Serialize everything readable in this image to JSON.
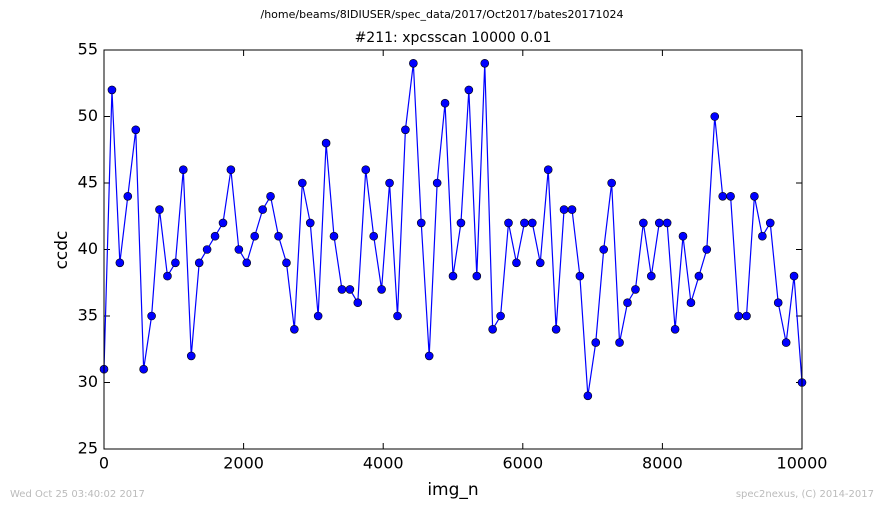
{
  "chart_data": {
    "type": "line",
    "title": "/home/beams/8IDIUSER/spec_data/2017/Oct2017/bates20171024",
    "subtitle": "#211: xpcsscan 10000 0.01",
    "x_label": "img_n",
    "y_label": "ccdc",
    "footer_left": "Wed Oct 25 03:40:02 2017",
    "footer_right": "spec2nexus, (C) 2014-2017",
    "x": [
      0,
      114,
      227,
      341,
      455,
      568,
      682,
      795,
      909,
      1023,
      1136,
      1250,
      1364,
      1477,
      1591,
      1705,
      1818,
      1932,
      2045,
      2159,
      2273,
      2386,
      2500,
      2614,
      2727,
      2841,
      2955,
      3068,
      3182,
      3295,
      3409,
      3523,
      3636,
      3750,
      3864,
      3977,
      4091,
      4205,
      4318,
      4432,
      4545,
      4659,
      4773,
      4886,
      5000,
      5114,
      5227,
      5341,
      5455,
      5568,
      5682,
      5795,
      5909,
      6023,
      6136,
      6250,
      6364,
      6477,
      6591,
      6705,
      6818,
      6932,
      7045,
      7159,
      7273,
      7386,
      7500,
      7614,
      7727,
      7841,
      7955,
      8068,
      8182,
      8295,
      8409,
      8523,
      8636,
      8750,
      8864,
      8977,
      9091,
      9205,
      9318,
      9432,
      9545,
      9659,
      9773,
      9886,
      10000
    ],
    "series": [
      {
        "name": "ccdc",
        "color": "#0000ff",
        "values": [
          31,
          52,
          39,
          44,
          49,
          31,
          35,
          43,
          38,
          39,
          46,
          32,
          39,
          40,
          41,
          42,
          46,
          40,
          39,
          41,
          43,
          44,
          41,
          39,
          34,
          45,
          42,
          35,
          48,
          41,
          37,
          37,
          36,
          46,
          41,
          37,
          45,
          35,
          49,
          54,
          42,
          32,
          45,
          51,
          38,
          42,
          52,
          38,
          54,
          34,
          35,
          42,
          39,
          42,
          42,
          39,
          46,
          34,
          43,
          43,
          38,
          29,
          33,
          40,
          45,
          33,
          36,
          37,
          42,
          38,
          42,
          42,
          34,
          41,
          36,
          38,
          40,
          50,
          44,
          44,
          35,
          35,
          44,
          41,
          42,
          36,
          33,
          38,
          30
        ]
      }
    ],
    "xlim": [
      0,
      10000
    ],
    "xticks": [
      0,
      2000,
      4000,
      6000,
      8000,
      10000
    ],
    "ylim": [
      25,
      55
    ],
    "yticks": [
      25,
      30,
      35,
      40,
      45,
      50,
      55
    ]
  }
}
